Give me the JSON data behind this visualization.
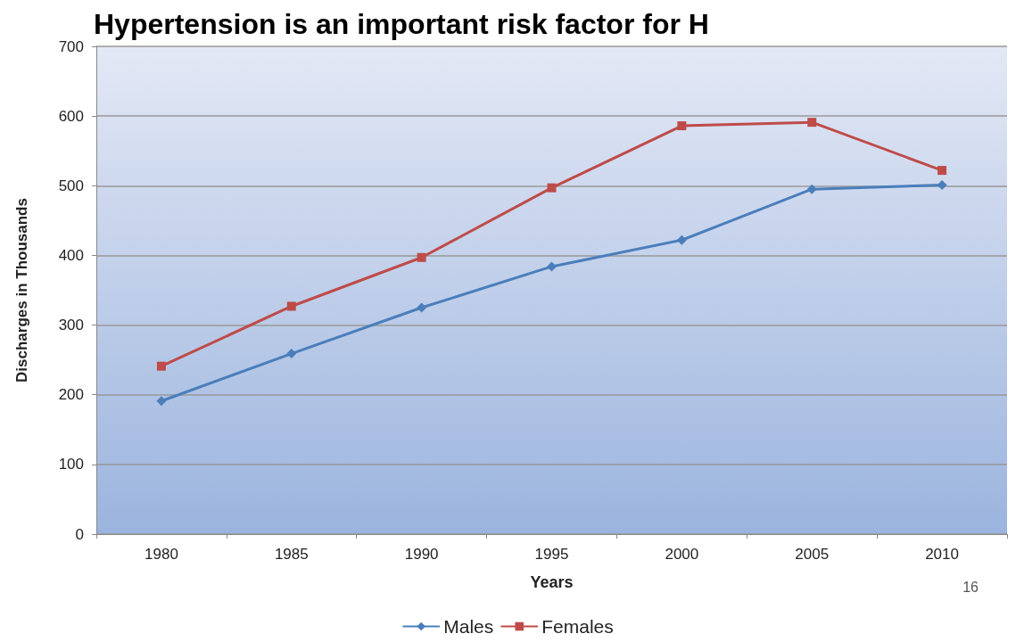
{
  "chart_data": {
    "type": "line",
    "title": "Hypertension is an important risk factor for H",
    "categories": [
      "1980",
      "1985",
      "1990",
      "1995",
      "2000",
      "2005",
      "2010"
    ],
    "series": [
      {
        "name": "Males",
        "color": "#4a7ebb",
        "marker": "diamond",
        "values": [
          191,
          259,
          325,
          384,
          422,
          495,
          501
        ]
      },
      {
        "name": "Females",
        "color": "#be4b48",
        "marker": "square",
        "values": [
          241,
          327,
          397,
          497,
          586,
          591,
          522
        ]
      }
    ],
    "xlabel": "Years",
    "ylabel": "Discharges in Thousands",
    "ylim": [
      0,
      700
    ],
    "yticks": [
      0,
      100,
      200,
      300,
      400,
      500,
      600,
      700
    ],
    "grid": "y",
    "legend": "bottom",
    "line_style": "solid",
    "annotations": [
      "16"
    ]
  }
}
